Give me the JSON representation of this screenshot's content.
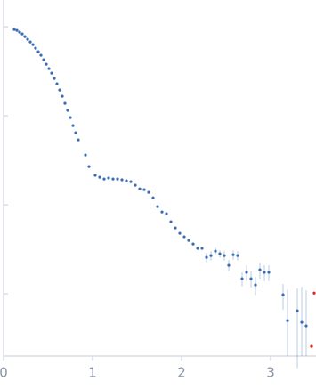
{
  "chart_data": {
    "type": "scatter",
    "log_y": true,
    "xlim": [
      0,
      3.51
    ],
    "xticks": [
      0,
      1,
      2,
      3
    ],
    "ylim": [
      0.002,
      20
    ],
    "yticks": [
      0.01,
      0.1,
      1,
      10
    ],
    "series": [
      {
        "color": "#3a6db3",
        "x": [
          0.12,
          0.15,
          0.18,
          0.21,
          0.24,
          0.27,
          0.3,
          0.33,
          0.36,
          0.39,
          0.42,
          0.45,
          0.48,
          0.51,
          0.54,
          0.57,
          0.6,
          0.63,
          0.66,
          0.69,
          0.72,
          0.75,
          0.78,
          0.81,
          0.84,
          0.92,
          0.96,
          1.03,
          1.08,
          1.13,
          1.18,
          1.23,
          1.28,
          1.33,
          1.38,
          1.43,
          1.48,
          1.53,
          1.58,
          1.63,
          1.68,
          1.73,
          1.78,
          1.83,
          1.88,
          1.93,
          1.98,
          2.03,
          2.08,
          2.13,
          2.18,
          2.23,
          2.28,
          2.33,
          2.38,
          2.43,
          2.48,
          2.53,
          2.58,
          2.63,
          2.68,
          2.73,
          2.78,
          2.83,
          2.88,
          2.93,
          2.98,
          3.14,
          3.19,
          3.3,
          3.35,
          3.4
        ],
        "values": [
          9.33,
          9.12,
          8.71,
          8.32,
          7.76,
          7.24,
          6.76,
          6.31,
          5.75,
          5.25,
          4.79,
          4.27,
          3.8,
          3.39,
          3.02,
          2.63,
          2.29,
          1.95,
          1.66,
          1.38,
          1.15,
          0.955,
          0.776,
          0.646,
          0.537,
          0.363,
          0.269,
          0.214,
          0.204,
          0.195,
          0.2,
          0.195,
          0.195,
          0.191,
          0.186,
          0.182,
          0.166,
          0.151,
          0.148,
          0.138,
          0.12,
          0.0955,
          0.0832,
          0.0794,
          0.0646,
          0.055,
          0.0479,
          0.0437,
          0.0398,
          0.0363,
          0.0324,
          0.0324,
          0.0257,
          0.0269,
          0.0302,
          0.0282,
          0.0269,
          0.0209,
          0.0275,
          0.0269,
          0.0148,
          0.0174,
          0.0148,
          0.0126,
          0.0186,
          0.0174,
          0.0174,
          0.00977,
          0.00501,
          0.00646,
          0.00479,
          0.00437
        ],
        "errors": [
          null,
          null,
          null,
          null,
          null,
          null,
          null,
          null,
          null,
          null,
          null,
          null,
          null,
          null,
          null,
          null,
          null,
          null,
          null,
          null,
          null,
          null,
          null,
          null,
          null,
          null,
          null,
          null,
          null,
          null,
          null,
          null,
          null,
          null,
          null,
          null,
          null,
          null,
          null,
          null,
          null,
          null,
          null,
          null,
          null,
          null,
          null,
          null,
          null,
          null,
          null,
          null,
          0.0031,
          0.0033,
          0.0029,
          0.0027,
          0.0033,
          0.0031,
          0.0034,
          0.0033,
          0.0026,
          0.0035,
          0.003,
          0.0029,
          0.0038,
          0.0035,
          0.0035,
          0.0031,
          0.0062,
          0.005,
          0.0072,
          0.0066
        ]
      },
      {
        "color": "#e0231c",
        "x": [
          3.46,
          3.49
        ],
        "values": [
          0.00257,
          0.0102
        ]
      }
    ]
  }
}
